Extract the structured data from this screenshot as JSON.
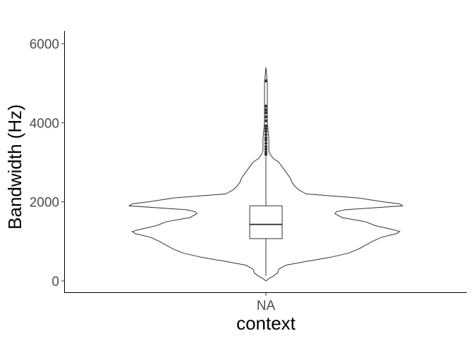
{
  "chart_data": {
    "type": "violin",
    "xlabel": "context",
    "ylabel": "Bandwidth (Hz)",
    "categories": [
      "NA"
    ],
    "ylim": [
      -300,
      6300
    ],
    "yticks": [
      0,
      2000,
      4000,
      6000
    ],
    "ytick_labels": [
      "0",
      "2000",
      "4000",
      "6000"
    ],
    "grid": false,
    "legend": "none",
    "violin": {
      "density_profile": [
        [
          0,
          0.0
        ],
        [
          60,
          0.02
        ],
        [
          120,
          0.05
        ],
        [
          200,
          0.08
        ],
        [
          300,
          0.09
        ],
        [
          400,
          0.14
        ],
        [
          500,
          0.29
        ],
        [
          600,
          0.45
        ],
        [
          700,
          0.57
        ],
        [
          800,
          0.64
        ],
        [
          900,
          0.69
        ],
        [
          1000,
          0.74
        ],
        [
          1100,
          0.8
        ],
        [
          1200,
          0.91
        ],
        [
          1250,
          0.93
        ],
        [
          1300,
          0.88
        ],
        [
          1400,
          0.76
        ],
        [
          1500,
          0.69
        ],
        [
          1550,
          0.61
        ],
        [
          1600,
          0.53
        ],
        [
          1700,
          0.48
        ],
        [
          1750,
          0.49
        ],
        [
          1800,
          0.55
        ],
        [
          1900,
          0.95
        ],
        [
          1950,
          0.93
        ],
        [
          2000,
          0.82
        ],
        [
          2100,
          0.64
        ],
        [
          2200,
          0.28
        ],
        [
          2300,
          0.23
        ],
        [
          2400,
          0.2
        ],
        [
          2500,
          0.18
        ],
        [
          2600,
          0.17
        ],
        [
          2700,
          0.15
        ],
        [
          2800,
          0.13
        ],
        [
          2900,
          0.11
        ],
        [
          3000,
          0.09
        ],
        [
          3100,
          0.05
        ],
        [
          3200,
          0.03
        ],
        [
          3300,
          0.02
        ],
        [
          3600,
          0.02
        ],
        [
          4000,
          0.01
        ],
        [
          4500,
          0.01
        ],
        [
          5000,
          0.01
        ],
        [
          5400,
          0.0
        ]
      ]
    },
    "boxplot": {
      "q1": 1070,
      "median": 1430,
      "q3": 1900,
      "whisker_low": 130,
      "whisker_high": 3150,
      "outliers": [
        3200,
        3260,
        3330,
        3400,
        3480,
        3560,
        3620,
        3700,
        3780,
        3850,
        3920,
        4050,
        4150,
        4250,
        4330,
        4420,
        5060
      ]
    },
    "colors": {
      "outline": "#333333",
      "axis": "#000000",
      "tick_label": "#4d4d4d"
    }
  }
}
